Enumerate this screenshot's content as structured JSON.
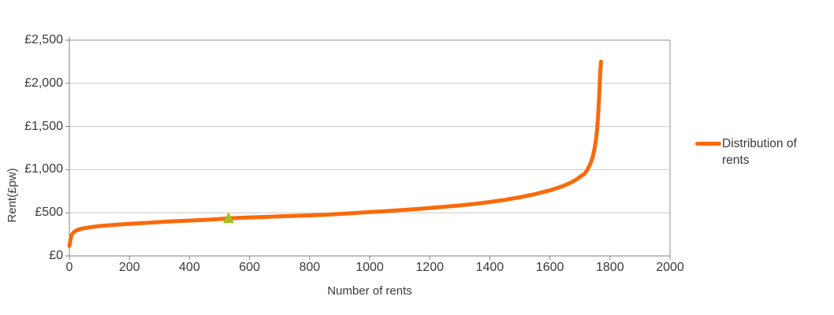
{
  "chart": {
    "y_axis_title": "Rent(£pw)",
    "x_axis_title": "Number of rents",
    "y_tick_labels": [
      "£0",
      "£500",
      "£1,000",
      "£1,500",
      "£2,000",
      "£2,500"
    ],
    "x_tick_labels": [
      "0",
      "200",
      "400",
      "600",
      "800",
      "1000",
      "1200",
      "1400",
      "1600",
      "1800",
      "2000"
    ],
    "legend": {
      "label": "Distribution of rents"
    },
    "colors": {
      "series": "#FA6A0A",
      "marker": "#A2C11F",
      "gridline": "#C8C8C8",
      "border": "#909090",
      "axis": "#808080",
      "text": "#3A3A3A",
      "background": "#FFFFFF"
    }
  },
  "chart_data": {
    "type": "line",
    "title": "",
    "xlabel": "Number of rents",
    "ylabel": "Rent(£pw)",
    "xlim": [
      0,
      2000
    ],
    "ylim": [
      0,
      2500
    ],
    "x_ticks": [
      0,
      200,
      400,
      600,
      800,
      1000,
      1200,
      1400,
      1600,
      1800,
      2000
    ],
    "y_ticks": [
      0,
      500,
      1000,
      1500,
      2000,
      2500
    ],
    "grid": "horizontal",
    "legend_position": "right",
    "series": [
      {
        "name": "Distribution of rents",
        "color": "#FA6A0A",
        "points": [
          [
            0,
            115
          ],
          [
            2,
            150
          ],
          [
            4,
            195
          ],
          [
            6,
            225
          ],
          [
            9,
            250
          ],
          [
            14,
            272
          ],
          [
            20,
            290
          ],
          [
            30,
            305
          ],
          [
            45,
            318
          ],
          [
            65,
            330
          ],
          [
            90,
            342
          ],
          [
            120,
            352
          ],
          [
            160,
            363
          ],
          [
            200,
            372
          ],
          [
            250,
            382
          ],
          [
            300,
            392
          ],
          [
            350,
            402
          ],
          [
            400,
            410
          ],
          [
            450,
            418
          ],
          [
            500,
            428
          ],
          [
            530,
            436
          ],
          [
            560,
            440
          ],
          [
            600,
            446
          ],
          [
            650,
            452
          ],
          [
            700,
            458
          ],
          [
            750,
            464
          ],
          [
            800,
            470
          ],
          [
            850,
            477
          ],
          [
            900,
            487
          ],
          [
            950,
            497
          ],
          [
            1000,
            508
          ],
          [
            1050,
            518
          ],
          [
            1100,
            530
          ],
          [
            1150,
            542
          ],
          [
            1200,
            556
          ],
          [
            1250,
            570
          ],
          [
            1300,
            585
          ],
          [
            1350,
            603
          ],
          [
            1400,
            625
          ],
          [
            1450,
            650
          ],
          [
            1500,
            680
          ],
          [
            1550,
            715
          ],
          [
            1600,
            760
          ],
          [
            1640,
            805
          ],
          [
            1670,
            850
          ],
          [
            1690,
            890
          ],
          [
            1700,
            915
          ],
          [
            1710,
            940
          ],
          [
            1715,
            950
          ],
          [
            1725,
            1000
          ],
          [
            1735,
            1070
          ],
          [
            1742,
            1140
          ],
          [
            1748,
            1230
          ],
          [
            1753,
            1340
          ],
          [
            1757,
            1460
          ],
          [
            1760,
            1600
          ],
          [
            1763,
            1780
          ],
          [
            1766,
            2000
          ],
          [
            1768,
            2150
          ],
          [
            1770,
            2250
          ]
        ]
      }
    ],
    "markers": [
      {
        "shape": "triangle-up",
        "color": "#A2C11F",
        "x": 530,
        "y": 440
      }
    ]
  }
}
